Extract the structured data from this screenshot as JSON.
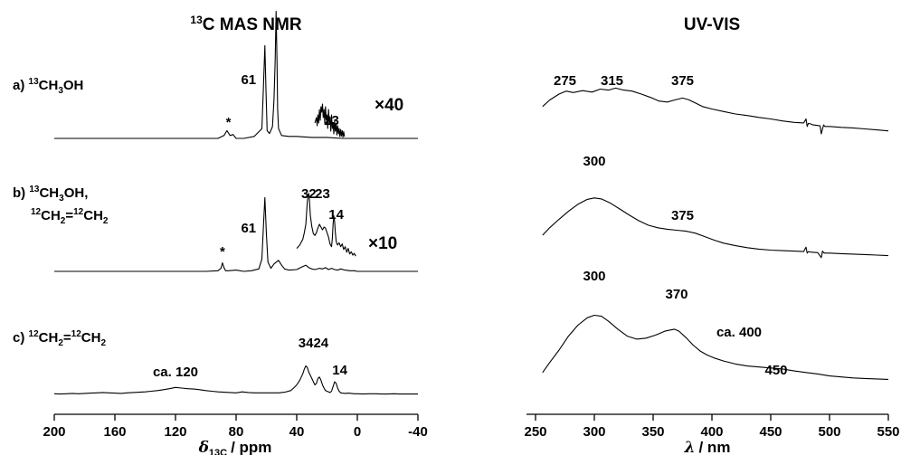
{
  "chart_data": [
    {
      "type": "line",
      "title_sup": "13",
      "title": "C MAS NMR",
      "xlabel_main": "δ",
      "xlabel_sub": "13C",
      "xlabel_unit": "/ ppm",
      "xlim": [
        200,
        -40
      ],
      "xticks": [
        "200",
        "160",
        "120",
        "80",
        "40",
        "0",
        "-40"
      ],
      "rows": [
        {
          "label_parts": [
            "a) ",
            "13",
            "CH",
            "3",
            "OH"
          ],
          "peaks": [
            {
              "text": "61",
              "x": 61
            },
            {
              "text": "23",
              "x": 23
            },
            {
              "text": "*",
              "x": 85
            }
          ],
          "multiplier": "×40"
        },
        {
          "label_parts": [
            "b) ",
            "13",
            "CH",
            "3",
            "OH,"
          ],
          "label2_parts": [
            "12",
            "CH",
            "2",
            "=",
            "12",
            "CH",
            "2"
          ],
          "peaks": [
            {
              "text": "61",
              "x": 61
            },
            {
              "text": "32",
              "x": 32
            },
            {
              "text": "23",
              "x": 23
            },
            {
              "text": "14",
              "x": 14
            },
            {
              "text": "*",
              "x": 89
            }
          ],
          "multiplier": "×10"
        },
        {
          "label_parts": [
            "c) ",
            "12",
            "CH",
            "2",
            "=",
            "12",
            "CH",
            "2"
          ],
          "peaks": [
            {
              "text": "ca. 120",
              "x": 120
            },
            {
              "text": "34",
              "x": 34
            },
            {
              "text": "24",
              "x": 24
            },
            {
              "text": "14",
              "x": 14
            }
          ]
        }
      ],
      "series": [
        {
          "row": 0,
          "x": [
            200,
            150,
            100,
            92,
            88,
            86,
            84,
            82,
            80,
            75,
            68,
            63,
            62,
            61,
            60.3,
            59.5,
            58,
            56,
            55,
            54.2,
            53.6,
            53,
            52.6,
            52,
            50,
            45,
            40,
            30,
            20,
            10,
            0,
            -20,
            -40
          ],
          "y": [
            0,
            0,
            0,
            0,
            0.03,
            0.08,
            0.03,
            0.04,
            0,
            0,
            0.02,
            0.1,
            0.5,
            0.95,
            0.5,
            0.08,
            0.05,
            0.12,
            0.4,
            0.8,
            1.3,
            0.8,
            0.3,
            0.1,
            0.03,
            0.02,
            0.02,
            0.01,
            0.01,
            0,
            0,
            0,
            0
          ]
        },
        {
          "row": 0,
          "x": [
            28,
            27,
            26.5,
            26,
            25.5,
            25,
            24.5,
            24,
            23.5,
            23,
            22.5,
            22,
            21.5,
            21,
            20.5,
            20,
            19.5,
            19,
            18.5,
            18,
            17.5,
            17,
            16.5,
            16,
            15.5,
            15,
            14.5,
            14,
            13.5,
            13,
            12.5,
            12,
            11.5,
            11,
            10.5,
            10,
            9.5,
            9,
            8.5
          ],
          "y": [
            0.2,
            0.3,
            0.15,
            0.35,
            0.2,
            0.45,
            0.25,
            0.5,
            0.4,
            0.55,
            0.3,
            0.45,
            0.2,
            0.5,
            0.25,
            0.35,
            0.1,
            0.45,
            0.2,
            0.3,
            0.05,
            0.35,
            0.1,
            0.2,
            0,
            0.25,
            0.05,
            0.18,
            -0.02,
            0.15,
            0,
            0.1,
            -0.05,
            0.08,
            -0.04,
            0.06,
            -0.06,
            0.04,
            -0.05
          ]
        },
        {
          "row": 1,
          "x": [
            200,
            150,
            100,
            92,
            90,
            89,
            88,
            87,
            85,
            80,
            75,
            70,
            65,
            63,
            62,
            61,
            60,
            59,
            57,
            55,
            52,
            50,
            48,
            45,
            40,
            36,
            34,
            32,
            30,
            28,
            25,
            23,
            21,
            19,
            17,
            15,
            13,
            11,
            8,
            5,
            2,
            0,
            -20,
            -40
          ],
          "y": [
            0,
            0,
            0,
            0.01,
            0.05,
            0.14,
            0.06,
            0.01,
            0.01,
            0.02,
            0,
            0.01,
            0.04,
            0.2,
            0.7,
            1.2,
            0.6,
            0.15,
            0.05,
            0.12,
            0.18,
            0.1,
            0.04,
            0.02,
            0.03,
            0.08,
            0.1,
            0.06,
            0.04,
            0.03,
            0.05,
            0.04,
            0.06,
            0.03,
            0.05,
            0.03,
            0.02,
            0.04,
            0.02,
            0.01,
            0.01,
            0,
            0,
            0
          ]
        },
        {
          "row": 1,
          "x": [
            40,
            38,
            36,
            35,
            34,
            33.5,
            33,
            32.5,
            32,
            31.5,
            31,
            30,
            29,
            28,
            27,
            26,
            25,
            24,
            23,
            22,
            21,
            20,
            19,
            18,
            17,
            16.5,
            16,
            15.5,
            15,
            14.5,
            14,
            13.5,
            13,
            12,
            11,
            10,
            9,
            8,
            7,
            6,
            5,
            4,
            3,
            2,
            1
          ],
          "y": [
            0.12,
            0.18,
            0.28,
            0.4,
            0.55,
            0.75,
            0.95,
            1.05,
            1.1,
            0.95,
            0.7,
            0.5,
            0.38,
            0.35,
            0.4,
            0.48,
            0.55,
            0.5,
            0.45,
            0.5,
            0.48,
            0.4,
            0.32,
            0.2,
            0.15,
            0.3,
            0.55,
            0.7,
            0.6,
            0.4,
            0.25,
            0.2,
            0.18,
            0.22,
            0.15,
            0.2,
            0.1,
            0.15,
            0.05,
            0.12,
            0.02,
            0.06,
            0,
            0.03,
            -0.02
          ]
        },
        {
          "row": 2,
          "x": [
            200,
            196,
            192,
            188,
            184,
            180,
            176,
            172,
            168,
            164,
            160,
            156,
            152,
            148,
            144,
            140,
            136,
            132,
            128,
            124,
            120,
            116,
            112,
            108,
            104,
            100,
            96,
            92,
            88,
            84,
            80,
            76,
            72,
            68,
            64,
            60,
            56,
            52,
            48,
            44,
            42,
            40,
            38,
            36,
            35,
            34,
            33,
            32,
            31,
            30,
            29,
            28,
            27,
            26,
            25,
            24,
            23,
            22,
            21,
            20,
            19,
            18,
            17,
            16,
            15,
            14,
            13,
            12,
            11,
            10,
            8,
            6,
            4,
            2,
            0,
            -4,
            -8,
            -12,
            -16,
            -20,
            -24,
            -28,
            -32,
            -36,
            -40
          ],
          "y": [
            0.02,
            0.01,
            0.02,
            0.03,
            0.02,
            0.03,
            0.04,
            0.05,
            0.06,
            0.05,
            0.04,
            0.03,
            0.05,
            0.06,
            0.07,
            0.08,
            0.1,
            0.12,
            0.15,
            0.18,
            0.22,
            0.2,
            0.18,
            0.17,
            0.15,
            0.12,
            0.1,
            0.08,
            0.07,
            0.06,
            0.05,
            0.08,
            0.06,
            0.05,
            0.05,
            0.05,
            0.05,
            0.05,
            0.07,
            0.12,
            0.2,
            0.3,
            0.45,
            0.65,
            0.8,
            0.9,
            0.85,
            0.7,
            0.6,
            0.5,
            0.4,
            0.3,
            0.35,
            0.5,
            0.55,
            0.45,
            0.3,
            0.2,
            0.12,
            0.1,
            0.08,
            0.06,
            0.1,
            0.25,
            0.4,
            0.35,
            0.2,
            0.1,
            0.05,
            0.04,
            0.03,
            0.04,
            0.03,
            0.02,
            0.02,
            0.01,
            0.02,
            0.02,
            0.01,
            0.01,
            0.02,
            0.01,
            0.01,
            0.01,
            0.01
          ]
        }
      ]
    },
    {
      "type": "line",
      "title": "UV-VIS",
      "xlabel_main": "λ",
      "xlabel_unit": "/ nm",
      "xlim": [
        250,
        550
      ],
      "xticks": [
        "250",
        "300",
        "350",
        "400",
        "450",
        "500",
        "550"
      ],
      "rows": [
        {
          "peaks": [
            {
              "text": "275",
              "x": 275
            },
            {
              "text": "315",
              "x": 315
            },
            {
              "text": "375",
              "x": 375
            }
          ]
        },
        {
          "peaks": [
            {
              "text": "300",
              "x": 300
            },
            {
              "text": "375",
              "x": 375
            }
          ]
        },
        {
          "peaks": [
            {
              "text": "300",
              "x": 300
            },
            {
              "text": "370",
              "x": 370
            },
            {
              "text": "ca. 400",
              "x": 400
            },
            {
              "text": "450",
              "x": 450
            }
          ]
        }
      ],
      "series": [
        {
          "row": 0,
          "x": [
            256,
            262,
            270,
            276,
            282,
            290,
            298,
            305,
            312,
            318,
            325,
            332,
            340,
            348,
            355,
            362,
            368,
            375,
            380,
            386,
            392,
            400,
            410,
            420,
            430,
            440,
            450,
            460,
            470,
            478,
            480,
            481,
            482,
            484,
            486,
            490,
            492,
            493,
            494,
            495,
            496,
            500,
            510,
            520,
            530,
            540,
            550
          ],
          "y": [
            0.55,
            0.68,
            0.8,
            0.86,
            0.83,
            0.87,
            0.84,
            0.9,
            0.88,
            0.92,
            0.88,
            0.86,
            0.8,
            0.73,
            0.66,
            0.64,
            0.68,
            0.72,
            0.69,
            0.62,
            0.55,
            0.5,
            0.45,
            0.4,
            0.37,
            0.33,
            0.3,
            0.26,
            0.23,
            0.22,
            0.3,
            0.15,
            0.21,
            0.2,
            0.18,
            0.17,
            0.16,
            0.0,
            0.1,
            0.18,
            0.15,
            0.15,
            0.13,
            0.12,
            0.1,
            0.08,
            0.06
          ]
        },
        {
          "row": 1,
          "x": [
            256,
            262,
            270,
            278,
            286,
            294,
            300,
            306,
            314,
            322,
            330,
            338,
            346,
            354,
            362,
            370,
            378,
            386,
            394,
            402,
            410,
            420,
            430,
            440,
            450,
            460,
            470,
            478,
            480,
            481,
            482,
            484,
            490,
            493,
            494,
            495,
            496,
            500,
            510,
            520,
            530,
            540,
            550
          ],
          "y": [
            0.4,
            0.55,
            0.72,
            0.88,
            1.02,
            1.12,
            1.15,
            1.13,
            1.04,
            0.92,
            0.8,
            0.69,
            0.6,
            0.55,
            0.52,
            0.5,
            0.48,
            0.44,
            0.37,
            0.3,
            0.24,
            0.19,
            0.15,
            0.12,
            0.1,
            0.09,
            0.08,
            0.07,
            0.16,
            0.04,
            0.07,
            0.06,
            0.05,
            -0.05,
            0.08,
            0.05,
            0.04,
            0.04,
            0.03,
            0.02,
            0.01,
            0.0,
            -0.01
          ]
        },
        {
          "row": 2,
          "x": [
            256,
            262,
            270,
            278,
            286,
            294,
            300,
            306,
            312,
            320,
            328,
            336,
            344,
            352,
            360,
            368,
            372,
            378,
            384,
            390,
            396,
            402,
            410,
            420,
            430,
            440,
            450,
            460,
            470,
            480,
            490,
            500,
            510,
            520,
            530,
            540,
            550
          ],
          "y": [
            0.15,
            0.35,
            0.6,
            0.88,
            1.1,
            1.25,
            1.3,
            1.28,
            1.18,
            1.02,
            0.88,
            0.82,
            0.84,
            0.9,
            0.98,
            1.02,
            0.98,
            0.85,
            0.7,
            0.58,
            0.5,
            0.44,
            0.38,
            0.32,
            0.28,
            0.26,
            0.24,
            0.22,
            0.18,
            0.15,
            0.12,
            0.08,
            0.06,
            0.04,
            0.03,
            0.02,
            0.01
          ]
        }
      ]
    }
  ]
}
